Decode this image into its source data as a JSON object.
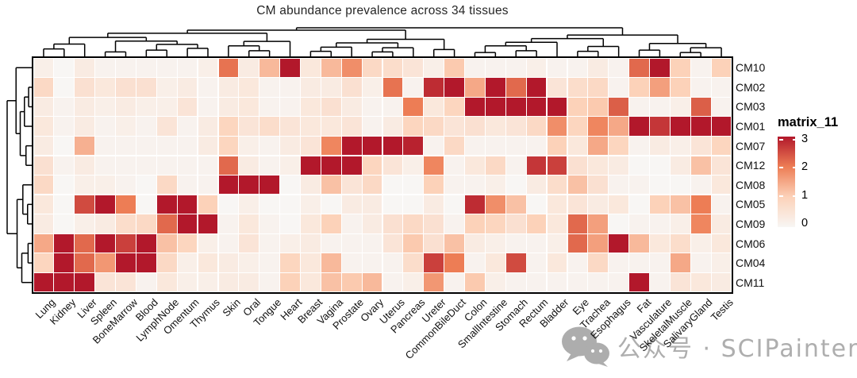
{
  "title": "CM abundance prevalence across 34 tissues",
  "legend": {
    "title": "matrix_11",
    "ticks": [
      3,
      2,
      1,
      0
    ]
  },
  "watermark": {
    "text": "公众号 · SCIPainter",
    "icon": "wechat-bubbles-icon"
  },
  "colors": {
    "ramp": [
      "#f8f6f4",
      "#fcd2b9",
      "#ed7d55",
      "#b2182b"
    ],
    "dendrogram": "#000000",
    "heatmap_border": "#000000",
    "label": "#111111",
    "title": "#262626",
    "watermark": "#aeaeae"
  },
  "chart_data": {
    "type": "heatmap",
    "title": "CM abundance prevalence across 34 tissues",
    "legend_title": "matrix_11",
    "legend_ticks": [
      0,
      1,
      2,
      3
    ],
    "value_range": [
      0,
      3
    ],
    "grid": false,
    "legend_position": "right",
    "rows": [
      "CM10",
      "CM02",
      "CM03",
      "CM01",
      "CM07",
      "CM12",
      "CM08",
      "CM05",
      "CM09",
      "CM06",
      "CM04",
      "CM11"
    ],
    "columns": [
      "Lung",
      "Kidney",
      "Liver",
      "Spleen",
      "BoneMarrow",
      "Blood",
      "LymphNode",
      "Omentum",
      "Thymus",
      "Skin",
      "Oral",
      "Tongue",
      "Heart",
      "Breast",
      "Vagina",
      "Prostate",
      "Ovary",
      "Uterus",
      "Pancreas",
      "Ureter",
      "CommonBileDuct",
      "Colon",
      "SmallIntestine",
      "Stomach",
      "Rectum",
      "Bladder",
      "Eye",
      "Trachea",
      "Esophagus",
      "Fat",
      "Vasculature",
      "SkeletalMuscle",
      "SalivaryGland",
      "Testis"
    ],
    "matrix": [
      [
        0.2,
        0.0,
        0.3,
        0.1,
        0.1,
        0.1,
        0.1,
        0.1,
        0.2,
        2.1,
        0.3,
        1.3,
        3.0,
        0.4,
        1.3,
        1.8,
        0.8,
        0.7,
        0.5,
        0.2,
        1.1,
        0.1,
        0.1,
        0.1,
        0.2,
        0.1,
        0.1,
        0.3,
        0.1,
        2.2,
        3.0,
        1.0,
        0.1,
        1.0
      ],
      [
        0.8,
        0.0,
        0.6,
        0.4,
        0.6,
        0.6,
        0.2,
        0.3,
        0.1,
        0.3,
        0.4,
        0.1,
        0.1,
        0.3,
        0.3,
        0.6,
        0.2,
        2.1,
        0.1,
        2.8,
        3.0,
        1.5,
        3.0,
        2.2,
        3.0,
        0.5,
        0.7,
        0.8,
        0.1,
        1.0,
        1.6,
        1.0,
        0.1,
        0.1
      ],
      [
        0.3,
        0.1,
        0.3,
        0.2,
        0.3,
        0.2,
        0.2,
        0.5,
        0.1,
        0.3,
        0.4,
        0.1,
        0.1,
        0.4,
        0.6,
        0.3,
        0.1,
        0.1,
        2.0,
        0.4,
        0.9,
        3.0,
        3.0,
        3.0,
        3.0,
        3.0,
        1.0,
        1.1,
        2.3,
        0.1,
        0.1,
        0.2,
        2.3,
        0.1
      ],
      [
        0.4,
        0.1,
        0.3,
        0.1,
        0.2,
        0.1,
        0.5,
        0.1,
        0.3,
        0.9,
        0.5,
        0.7,
        0.5,
        0.4,
        0.4,
        0.5,
        0.1,
        0.3,
        0.9,
        0.8,
        0.5,
        0.6,
        0.4,
        0.5,
        0.8,
        1.8,
        0.9,
        1.9,
        1.5,
        3.0,
        2.7,
        3.0,
        3.0,
        3.0
      ],
      [
        0.3,
        0.0,
        1.4,
        0.1,
        0.1,
        0.1,
        0.1,
        0.1,
        0.3,
        0.9,
        0.2,
        0.1,
        0.3,
        0.5,
        1.9,
        3.0,
        3.0,
        3.0,
        2.9,
        0.1,
        0.8,
        0.1,
        0.1,
        0.1,
        0.1,
        1.0,
        0.4,
        1.5,
        0.9,
        0.1,
        0.3,
        0.2,
        0.5,
        0.9
      ],
      [
        0.6,
        0.1,
        0.3,
        0.1,
        0.1,
        0.1,
        0.1,
        0.1,
        0.1,
        2.2,
        0.3,
        0.1,
        0.2,
        3.0,
        3.0,
        3.0,
        0.9,
        0.5,
        0.2,
        1.9,
        0.1,
        0.4,
        0.8,
        0.1,
        2.7,
        2.6,
        0.6,
        0.4,
        0.3,
        0.0,
        0.0,
        0.3,
        1.2,
        0.5
      ],
      [
        0.8,
        0.0,
        0.2,
        0.2,
        0.1,
        0.0,
        0.8,
        0.1,
        0.1,
        3.0,
        3.0,
        3.0,
        0.0,
        0.3,
        1.2,
        0.5,
        0.8,
        0.0,
        0.0,
        1.0,
        0.1,
        0.1,
        0.2,
        0.0,
        0.3,
        0.7,
        1.2,
        0.6,
        0.1,
        0.1,
        0.0,
        0.0,
        0.1,
        0.4
      ],
      [
        0.4,
        0.0,
        2.5,
        3.0,
        2.0,
        0.0,
        3.0,
        3.0,
        1.0,
        0.0,
        0.2,
        0.0,
        0.0,
        0.2,
        0.0,
        0.3,
        0.3,
        0.0,
        0.0,
        0.3,
        0.0,
        2.8,
        1.8,
        1.2,
        0.0,
        0.4,
        0.5,
        0.3,
        0.4,
        0.0,
        1.0,
        1.2,
        2.0,
        0.1
      ],
      [
        0.3,
        0.0,
        0.2,
        0.3,
        0.7,
        0.8,
        2.2,
        3.0,
        3.0,
        0.1,
        0.4,
        0.1,
        0.0,
        0.4,
        1.0,
        0.1,
        0.3,
        0.6,
        0.8,
        0.6,
        0.1,
        1.0,
        0.9,
        0.6,
        1.0,
        0.4,
        2.2,
        1.6,
        0.0,
        0.1,
        0.1,
        0.2,
        1.9,
        0.3
      ],
      [
        1.5,
        3.0,
        2.2,
        3.0,
        2.6,
        3.0,
        1.2,
        0.9,
        0.2,
        0.1,
        0.5,
        0.1,
        0.2,
        0.3,
        0.1,
        0.1,
        0.1,
        0.5,
        1.1,
        0.6,
        1.2,
        0.3,
        0.2,
        0.1,
        0.1,
        0.2,
        2.2,
        1.6,
        3.0,
        1.3,
        0.4,
        0.7,
        0.2,
        0.4
      ],
      [
        0.9,
        3.0,
        2.2,
        1.7,
        3.0,
        3.0,
        0.8,
        0.2,
        0.4,
        0.3,
        0.2,
        0.1,
        0.9,
        0.4,
        1.3,
        0.1,
        0.1,
        0.1,
        0.7,
        2.6,
        2.0,
        0.1,
        0.4,
        2.5,
        0.1,
        0.4,
        0.1,
        0.8,
        0.1,
        0.1,
        0.1,
        1.5,
        0.1,
        0.2
      ],
      [
        3.0,
        3.0,
        3.0,
        0.5,
        0.5,
        0.1,
        0.4,
        0.2,
        0.2,
        0.3,
        0.3,
        0.1,
        1.0,
        0.4,
        1.2,
        1.1,
        1.3,
        0.1,
        0.2,
        1.7,
        0.1,
        1.1,
        0.2,
        0.1,
        0.1,
        0.1,
        0.1,
        0.1,
        0.1,
        3.0,
        0.1,
        0.5,
        0.4,
        0.3
      ]
    ],
    "col_dendrogram": [
      [
        [
          [
            [
              [
                0,
                1,
                0.3
              ],
              2,
              0.46
            ],
            [
              [
                3,
                4,
                0.2
              ],
              [
                [
                  5,
                  6,
                  0.26
                ],
                [
                  7,
                  8,
                  0.32
                ],
                0.45
              ],
              0.56
            ],
            0.68
          ],
          [
            [
              9,
              [
                10,
                11,
                0.24
              ],
              0.4
            ],
            12,
            0.55
          ],
          0.82
        ],
        [
          [
            [
              [
                13,
                14,
                0.22
              ],
              15,
              0.36
            ],
            [
              [
                16,
                17,
                0.2
              ],
              18,
              0.34
            ],
            0.5
          ],
          [
            19,
            20,
            0.28
          ],
          0.62
        ],
        0.92
      ],
      [
        [
          [
            [
              [
                21,
                22,
                0.18
              ],
              [
                23,
                24,
                0.24
              ],
              0.4
            ],
            25,
            0.52
          ],
          [
            [
              26,
              27,
              0.22
            ],
            28,
            0.38
          ],
          0.64
        ],
        [
          [
            29,
            30,
            0.26
          ],
          [
            [
              31,
              32,
              0.18
            ],
            33,
            0.34
          ],
          0.48
        ],
        0.76
      ],
      1.0
    ],
    "row_dendrogram": [
      [
        0,
        [
          [
            [
              1,
              2,
              0.18
            ],
            3,
            0.34
          ],
          [
            4,
            5,
            0.28
          ],
          0.5
        ],
        0.66
      ],
      [
        [
          6,
          [
            7,
            8,
            0.22
          ],
          0.4
        ],
        [
          [
            9,
            10,
            0.2
          ],
          11,
          0.44
        ],
        0.62
      ],
      1.0
    ]
  }
}
